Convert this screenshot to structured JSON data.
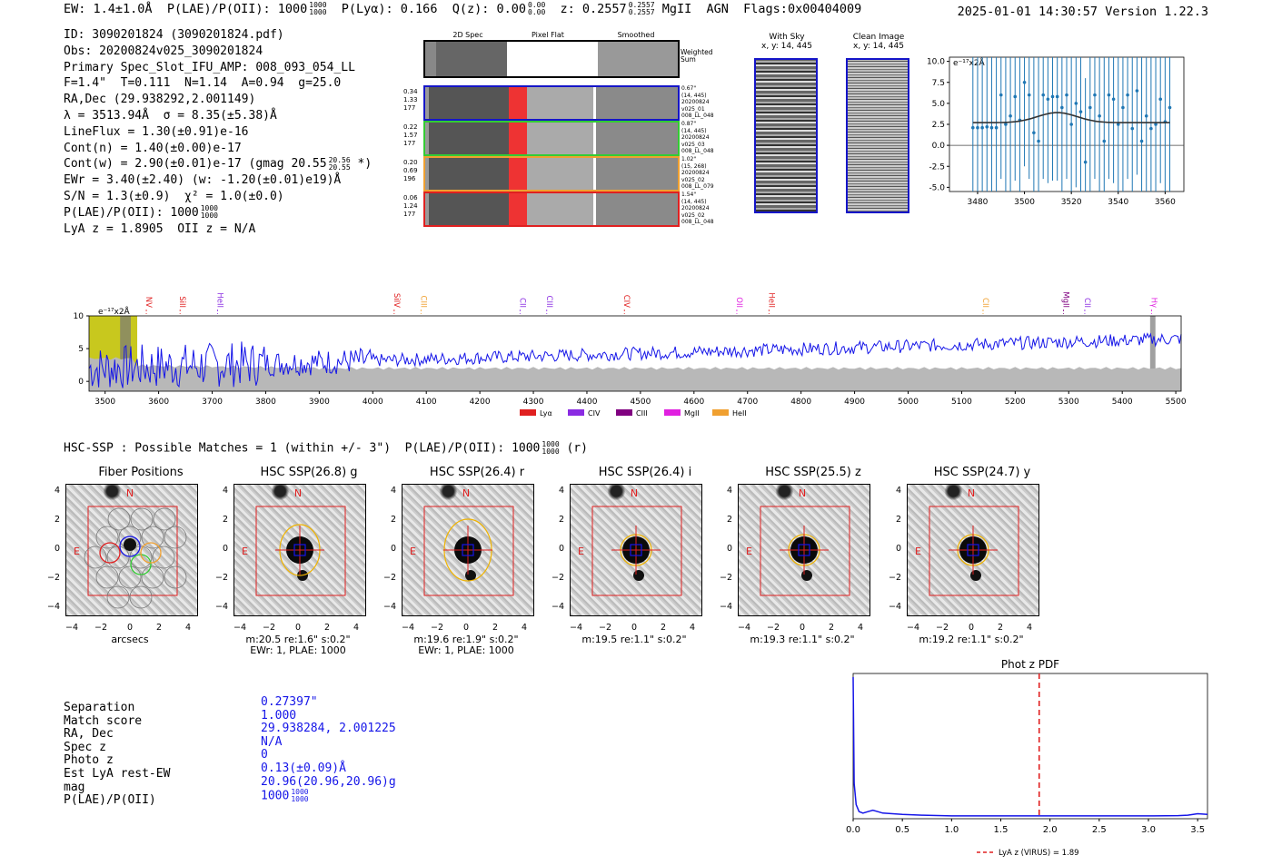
{
  "header": {
    "ew": "EW: 1.4±1.0Å",
    "plae": "P(LAE)/P(OII): 1000",
    "plae_hi": "1000",
    "plae_lo": "1000",
    "plya": "P(Lyα): 0.166",
    "qz": "Q(z): 0.00",
    "qz_hi": "0.00",
    "qz_lo": "0.00",
    "z": "z: 0.2557",
    "z_hi": "0.2557",
    "z_lo": "0.2557",
    "line": "MgII",
    "agn": "AGN",
    "flags": "Flags:0x00404009",
    "timestamp": "2025-01-01 14:30:57",
    "version": "Version 1.22.3"
  },
  "info": {
    "id": "ID: 3090201824 (3090201824.pdf)",
    "obs": "Obs: 20200824v025_3090201824",
    "slot": "Primary Spec_Slot_IFU_AMP: 008_093_054_LL",
    "params": "F=1.4\"  T=0.111  N=1.14  A=0.94  g=25.0",
    "radec": "RA,Dec (29.938292,2.001149)",
    "lambda": "λ = 3513.94Å  σ = 8.35(±5.38)Å",
    "lineflux": "LineFlux = 1.30(±0.91)e-16",
    "contn": "Cont(n) = 1.40(±0.00)e-17",
    "contw": "Cont(w) = 2.90(±0.01)e-17 (gmag 20.55",
    "contw_hi": "20.56",
    "contw_lo": "20.55",
    "contw_tail": "*)",
    "ewr": "EWr = 3.40(±2.40) (w: -1.20(±0.01)e19)Å",
    "sn": "S/N = 1.3(±0.9)  χ² = 1.0(±0.0)",
    "plae": "P(LAE)/P(OII): 1000",
    "plae_hi": "1000",
    "plae_lo": "1000",
    "lyaz": "LyA z = 1.8905  OII z = N/A"
  },
  "spec2d": {
    "col_headers": [
      "2D Spec",
      "Pixel Flat",
      "Smoothed"
    ],
    "weighted_sum": "Weighted Sum",
    "rows": [
      {
        "vals": [
          "0.34",
          "1.33",
          "177"
        ],
        "color": "#1515c8",
        "stamp": [
          "0.67\"",
          "(14, 445)",
          "20200824",
          "v025_01",
          "008_LL_048"
        ]
      },
      {
        "vals": [
          "0.22",
          "1.57",
          "177"
        ],
        "color": "#33cc33",
        "stamp": [
          "0.87\"",
          "(14, 445)",
          "20200824",
          "v025_03",
          "008_LL_048"
        ]
      },
      {
        "vals": [
          "0.20",
          "0.69",
          "196"
        ],
        "color": "#f0a030",
        "stamp": [
          "1.02\"",
          "(15, 268)",
          "20200824",
          "v025_02",
          "008_LL_079"
        ]
      },
      {
        "vals": [
          "0.06",
          "1.24",
          "177"
        ],
        "color": "#e02020",
        "stamp": [
          "1.54\"",
          "(14, 445)",
          "20200824",
          "v025_02",
          "008_LL_048"
        ]
      }
    ]
  },
  "cutouts": {
    "with_sky": "With Sky",
    "with_sky_xy": "x, y: 14, 445",
    "clean": "Clean Image",
    "clean_xy": "x, y: 14, 445"
  },
  "line_fit": {
    "ylabel": "e⁻¹⁷x2Å",
    "x": [
      3478,
      3480,
      3482,
      3484,
      3486,
      3488,
      3490,
      3492,
      3494,
      3496,
      3498,
      3500,
      3502,
      3504,
      3506,
      3508,
      3510,
      3512,
      3514,
      3516,
      3518,
      3520,
      3522,
      3524,
      3526,
      3528,
      3530,
      3532,
      3534,
      3536,
      3538,
      3540,
      3542,
      3544,
      3546,
      3548,
      3550,
      3552,
      3554,
      3556,
      3558,
      3560,
      3562
    ],
    "y": [
      2.1,
      2.1,
      2.1,
      2.2,
      2.1,
      2.1,
      6.0,
      2.5,
      3.5,
      5.8,
      3.0,
      7.5,
      6.0,
      1.5,
      0.5,
      6.0,
      5.5,
      5.8,
      5.8,
      4.5,
      6.0,
      2.5,
      5.0,
      4.0,
      -2.0,
      4.5,
      6.0,
      3.5,
      0.5,
      6.0,
      5.5,
      2.5,
      4.5,
      6.0,
      2.0,
      6.5,
      0.5,
      3.5,
      2.0,
      2.5,
      5.5,
      2.8,
      4.5
    ],
    "fit_base": 2.7,
    "fit_amp": 1.2,
    "fit_center": 3514,
    "fit_sigma": 8.35,
    "xlim": [
      3468,
      3568
    ],
    "ylim": [
      -5.5,
      10.5
    ],
    "xticks": [
      3480,
      3500,
      3520,
      3540,
      3560
    ],
    "yticks": [
      -5.0,
      -2.5,
      0.0,
      2.5,
      5.0,
      7.5,
      10.0
    ]
  },
  "full_spec": {
    "ylabel": "e⁻¹⁷x2Å",
    "xlim": [
      3470,
      5510
    ],
    "ylim": [
      -1.5,
      10
    ],
    "xticks": [
      3500,
      3600,
      3700,
      3800,
      3900,
      4000,
      4100,
      4200,
      4300,
      4400,
      4500,
      4600,
      4700,
      4800,
      4900,
      5000,
      5100,
      5200,
      5300,
      5400,
      5500
    ],
    "yticks": [
      0,
      5,
      10
    ],
    "lines": [
      {
        "name": "NV",
        "wave": 3577,
        "color": "#e02020"
      },
      {
        "name": "SiII",
        "wave": 3640,
        "color": "#e02020"
      },
      {
        "name": "HeII",
        "wave": 3710,
        "color": "#8a2be2"
      },
      {
        "name": "SiIV",
        "wave": 4040,
        "color": "#e02020"
      },
      {
        "name": "CIII",
        "wave": 4090,
        "color": "#f0a030"
      },
      {
        "name": "CII",
        "wave": 4275,
        "color": "#8a2be2"
      },
      {
        "name": "CIII",
        "wave": 4325,
        "color": "#8a2be2"
      },
      {
        "name": "CIV",
        "wave": 4470,
        "color": "#e02020"
      },
      {
        "name": "OII",
        "wave": 4680,
        "color": "#e020e0"
      },
      {
        "name": "HeII",
        "wave": 4740,
        "color": "#e02020"
      },
      {
        "name": "CII",
        "wave": 5140,
        "color": "#f0a030"
      },
      {
        "name": "MgII",
        "wave": 5290,
        "color": "#800080"
      },
      {
        "name": "CII",
        "wave": 5330,
        "color": "#8a2be2"
      },
      {
        "name": "Hγ",
        "wave": 5455,
        "color": "#e020e0"
      }
    ],
    "legend": [
      {
        "label": "Lyα",
        "color": "#e02020"
      },
      {
        "label": "CIV",
        "color": "#8a2be2"
      },
      {
        "label": "CIII",
        "color": "#800080"
      },
      {
        "label": "MgII",
        "color": "#e020e0"
      },
      {
        "label": "HeII",
        "color": "#f0a030"
      }
    ]
  },
  "hsc": {
    "summary": "HSC-SSP : Possible Matches = 1 (within +/- 3\")  P(LAE)/P(OII): 1000",
    "summary_hi": "1000",
    "summary_lo": "1000",
    "summary_tail": "(r)",
    "panels": [
      {
        "title": "Fiber Positions",
        "cap1": "arcsecs",
        "cap2": ""
      },
      {
        "title": "HSC SSP(26.8) g",
        "cap1": "m:20.5  re:1.6\"  s:0.2\"",
        "cap2": "EWr: 1, PLAE: 1000"
      },
      {
        "title": "HSC SSP(26.4) r",
        "cap1": "m:19.6  re:1.9\"  s:0.2\"",
        "cap2": "EWr: 1, PLAE: 1000"
      },
      {
        "title": "HSC SSP(26.4) i",
        "cap1": "m:19.5  re:1.1\"  s:0.2\"",
        "cap2": ""
      },
      {
        "title": "HSC SSP(25.5) z",
        "cap1": "m:19.3  re:1.1\"  s:0.2\"",
        "cap2": ""
      },
      {
        "title": "HSC SSP(24.7) y",
        "cap1": "m:19.2  re:1.1\"  s:0.2\"",
        "cap2": ""
      }
    ],
    "axis_ticks": [
      "−4",
      "−2",
      "0",
      "2",
      "4"
    ],
    "north": "N",
    "east": "E"
  },
  "match": {
    "labels": [
      "Separation",
      "Match score",
      "RA, Dec",
      "Spec z",
      "Photo z",
      "Est LyA rest-EW",
      "mag",
      "P(LAE)/P(OII)"
    ],
    "values": [
      "0.27397\"",
      "1.000",
      "29.938284, 2.001225",
      "N/A",
      "0",
      "0.13(±0.09)Å",
      "20.96(20.96,20.96)g",
      "1000"
    ],
    "plae_hi": "1000",
    "plae_lo": "1000"
  },
  "photz": {
    "title": "Phot z PDF",
    "legend": "LyA z (VIRUS) = 1.89",
    "lya_z": 1.89,
    "xlim": [
      0,
      3.6
    ],
    "xticks": [
      0.0,
      0.5,
      1.0,
      1.5,
      2.0,
      2.5,
      3.0,
      3.5
    ],
    "z": [
      0.0,
      0.01,
      0.03,
      0.06,
      0.1,
      0.15,
      0.2,
      0.25,
      0.3,
      0.4,
      0.5,
      0.7,
      1.0,
      1.5,
      2.0,
      2.5,
      3.0,
      3.3,
      3.4,
      3.5,
      3.6
    ],
    "p": [
      1.0,
      0.25,
      0.1,
      0.05,
      0.04,
      0.05,
      0.06,
      0.05,
      0.04,
      0.035,
      0.03,
      0.025,
      0.02,
      0.02,
      0.02,
      0.02,
      0.02,
      0.022,
      0.025,
      0.035,
      0.03
    ]
  }
}
